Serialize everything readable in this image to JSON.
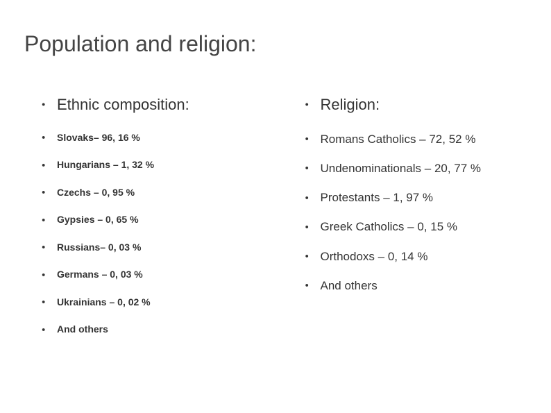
{
  "title": "Population and religion:",
  "left": {
    "header": "Ethnic composition:",
    "items": [
      "Slovaks– 96, 16 %",
      "Hungarians – 1, 32 %",
      "Czechs – 0, 95 %",
      "Gypsies – 0, 65 %",
      "Russians– 0, 03 %",
      "Germans – 0, 03 %",
      "Ukrainians – 0, 02 %",
      "And others"
    ]
  },
  "right": {
    "header": "Religion:",
    "items": [
      "Romans Catholics – 72, 52 %",
      "Undenominationals – 20, 77 %",
      "Protestants – 1, 97 %",
      "Greek Catholics – 0, 15 %",
      "Orthodoxs – 0, 14 %",
      "And others"
    ]
  },
  "colors": {
    "background": "#ffffff",
    "text": "#333333",
    "title": "#444444"
  },
  "typography": {
    "title_fontsize": 32,
    "header_fontsize": 22,
    "left_item_fontsize": 14,
    "right_item_fontsize": 17,
    "left_item_weight": 700,
    "right_item_weight": 400
  }
}
